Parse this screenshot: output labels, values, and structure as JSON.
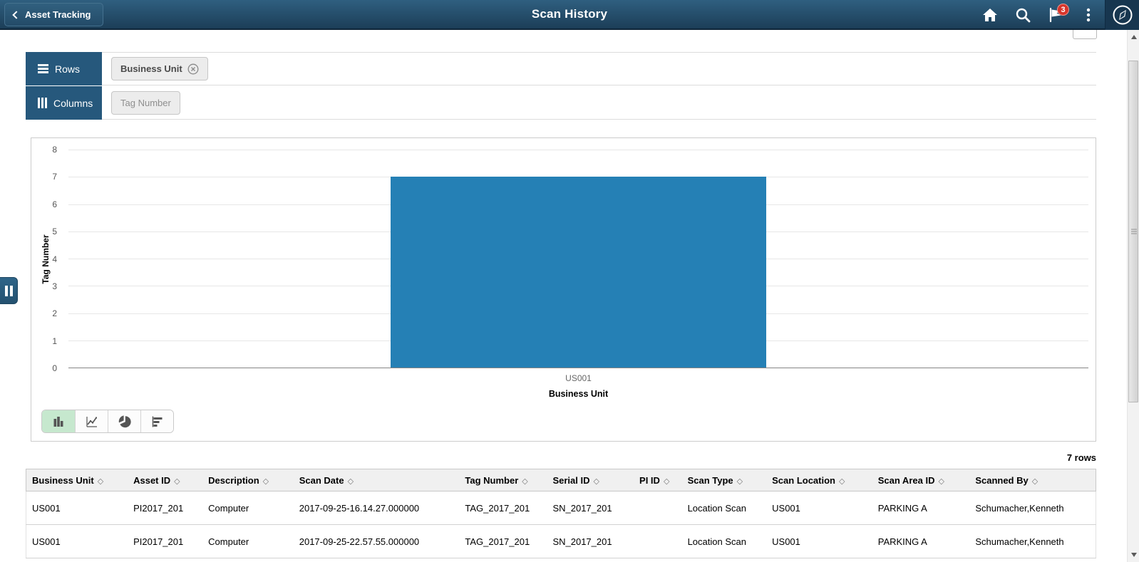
{
  "header": {
    "back_button_label": "Asset Tracking",
    "title": "Scan History",
    "notification_badge": "3"
  },
  "pivot": {
    "rows_label": "Rows",
    "columns_label": "Columns",
    "row_chip_label": "Business Unit",
    "column_chip_label": "Tag Number"
  },
  "chart_data": {
    "type": "bar",
    "categories": [
      "US001"
    ],
    "series": [
      {
        "name": "Tag Number",
        "values": [
          7
        ]
      }
    ],
    "title": "",
    "xlabel": "Business Unit",
    "ylabel": "Tag Number",
    "ylim": [
      0,
      8
    ],
    "ytick_step": 1,
    "grid": true,
    "legend": "none",
    "bar_color": "#2580b5"
  },
  "chart_toolbar": {
    "selected_type": "bar",
    "types": [
      "bar",
      "line",
      "pie",
      "horizontal-bar"
    ]
  },
  "table": {
    "row_count_label": "7 rows",
    "sort_glyph": "◇",
    "columns": [
      "Business Unit",
      "Asset ID",
      "Description",
      "Scan Date",
      "Tag Number",
      "Serial ID",
      "PI ID",
      "Scan Type",
      "Scan Location",
      "Scan Area ID",
      "Scanned By"
    ],
    "rows": [
      [
        "US001",
        "PI2017_201",
        "Computer",
        "2017-09-25-16.14.27.000000",
        "TAG_2017_201",
        "SN_2017_201",
        "",
        "Location Scan",
        "US001",
        "PARKING A",
        "Schumacher,Kenneth"
      ],
      [
        "US001",
        "PI2017_201",
        "Computer",
        "2017-09-25-22.57.55.000000",
        "TAG_2017_201",
        "SN_2017_201",
        "",
        "Location Scan",
        "US001",
        "PARKING A",
        "Schumacher,Kenneth"
      ]
    ]
  },
  "colors": {
    "header_blue": "#1c3e58",
    "panel_blue": "#26587c",
    "bar_blue": "#2580b5",
    "badge_red": "#d8352b",
    "selected_button_green": "#c6e8ce"
  }
}
